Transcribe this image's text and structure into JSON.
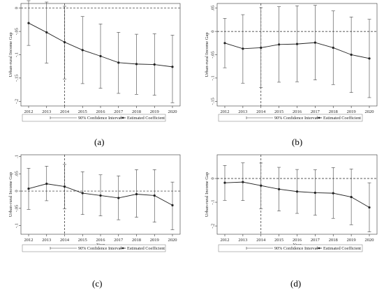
{
  "chart_data": [
    {
      "type": "line",
      "panel_label": "(a)",
      "xlabel": "Year",
      "ylabel": "Urban-rural Income Gap",
      "x": [
        "2012",
        "2013",
        "2014",
        "2015",
        "2016",
        "2017",
        "2018",
        "2019",
        "2020"
      ],
      "ylim": [
        -0.21,
        0.01
      ],
      "yticks": [
        0,
        -0.05,
        -0.1,
        -0.15,
        -0.2
      ],
      "ytick_labels": [
        "0",
        "-.05",
        "-.1",
        "-.15",
        "-.2"
      ],
      "series": [
        {
          "name": "Estimated Coefficient",
          "values": [
            -0.032,
            -0.052,
            -0.073,
            -0.09,
            -0.103,
            -0.117,
            -0.12,
            -0.121,
            -0.126
          ],
          "ci_low": [
            -0.08,
            -0.118,
            -0.152,
            -0.162,
            -0.172,
            -0.183,
            -0.185,
            -0.187,
            -0.203
          ],
          "ci_high": [
            0.016,
            0.013,
            0.004,
            -0.018,
            -0.034,
            -0.052,
            -0.056,
            -0.055,
            -0.058
          ]
        }
      ],
      "vline_x": "2014",
      "legend": [
        "90% Confidence Interval",
        "Estimated Coefficient"
      ],
      "grid": false
    },
    {
      "type": "line",
      "panel_label": "(b)",
      "xlabel": "Year",
      "ylabel": "Urban-rural Income Gap",
      "x": [
        "2012",
        "2013",
        "2014",
        "2015",
        "2016",
        "2017",
        "2018",
        "2019",
        "2020"
      ],
      "ylim": [
        -0.16,
        0.06
      ],
      "yticks": [
        0.05,
        0,
        -0.05,
        -0.1,
        -0.15
      ],
      "ytick_labels": [
        ".05",
        "0",
        "-.05",
        "-.1",
        "-.15"
      ],
      "series": [
        {
          "name": "Estimated Coefficient",
          "values": [
            -0.025,
            -0.037,
            -0.035,
            -0.028,
            -0.027,
            -0.024,
            -0.035,
            -0.05,
            -0.058
          ],
          "ci_low": [
            -0.078,
            -0.111,
            -0.12,
            -0.109,
            -0.108,
            -0.104,
            -0.114,
            -0.131,
            -0.142
          ],
          "ci_high": [
            0.028,
            0.036,
            0.051,
            0.053,
            0.055,
            0.056,
            0.044,
            0.031,
            0.026
          ]
        }
      ],
      "vline_x": "2014",
      "legend": [
        "90% Confidence Interval",
        "Estimated Coefficient"
      ],
      "grid": false
    },
    {
      "type": "line",
      "panel_label": "(c)",
      "xlabel": "Year",
      "ylabel": "Urban-rural Income Gap",
      "x": [
        "2012",
        "2013",
        "2014",
        "2015",
        "2016",
        "2017",
        "2018",
        "2019",
        "2020"
      ],
      "ylim": [
        -0.125,
        0.105
      ],
      "yticks": [
        0.1,
        0.05,
        0,
        -0.05,
        -0.1
      ],
      "ytick_labels": [
        ".1",
        ".05",
        "0",
        "-.05",
        "-.1"
      ],
      "series": [
        {
          "name": "Estimated Coefficient",
          "values": [
            0.007,
            0.021,
            0.013,
            -0.006,
            -0.013,
            -0.02,
            -0.009,
            -0.013,
            -0.041
          ],
          "ci_low": [
            -0.053,
            -0.028,
            -0.051,
            -0.068,
            -0.072,
            -0.083,
            -0.076,
            -0.09,
            -0.112
          ],
          "ci_high": [
            0.066,
            0.072,
            0.077,
            0.056,
            0.047,
            0.044,
            0.062,
            0.062,
            0.026
          ]
        }
      ],
      "vline_x": "2014",
      "legend": [
        "90% Confidence Interval",
        "Estimated Coefficient"
      ],
      "grid": false
    },
    {
      "type": "line",
      "panel_label": "(d)",
      "xlabel": "Year",
      "ylabel": "Urban-rural Income Gap",
      "x": [
        "2012",
        "2013",
        "2014",
        "2015",
        "2016",
        "2017",
        "2018",
        "2019",
        "2020"
      ],
      "ylim": [
        -0.235,
        0.1
      ],
      "yticks": [
        0,
        -0.1,
        -0.2
      ],
      "ytick_labels": [
        "0",
        "-.1",
        "-.2"
      ],
      "series": [
        {
          "name": "Estimated Coefficient",
          "values": [
            -0.018,
            -0.015,
            -0.03,
            -0.045,
            -0.055,
            -0.06,
            -0.062,
            -0.078,
            -0.122
          ],
          "ci_low": [
            -0.092,
            -0.093,
            -0.127,
            -0.137,
            -0.147,
            -0.155,
            -0.168,
            -0.195,
            -0.225
          ],
          "ci_high": [
            0.055,
            0.066,
            0.065,
            0.047,
            0.038,
            0.037,
            0.046,
            0.04,
            -0.018
          ]
        }
      ],
      "vline_x": "2014",
      "legend": [
        "90% Confidence Interval",
        "Estimated Coefficient"
      ],
      "grid": false
    }
  ]
}
